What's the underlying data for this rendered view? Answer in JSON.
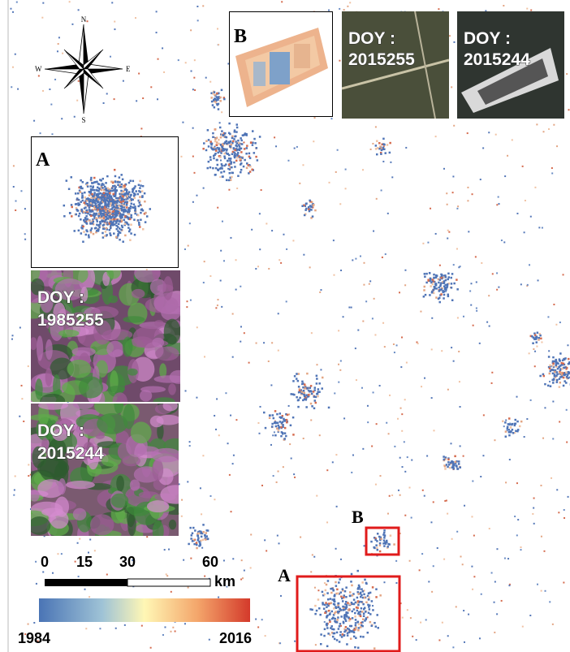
{
  "compass": {
    "n": "N",
    "s": "S",
    "e": "E",
    "w": "W"
  },
  "insets": {
    "b_detail": {
      "label": "B"
    },
    "b_2015255": {
      "prefix": "DOY :",
      "date": "2015255"
    },
    "b_2015244": {
      "prefix": "DOY :",
      "date": "2015244"
    },
    "a_detail": {
      "label": "A"
    },
    "a_1985255": {
      "prefix": "DOY :",
      "date": "1985255"
    },
    "a_2015244": {
      "prefix": "DOY :",
      "date": "2015244"
    }
  },
  "map_labels": {
    "a": "A",
    "b": "B"
  },
  "scale_bar": {
    "ticks": [
      "0",
      "15",
      "30",
      "60"
    ],
    "unit": "km"
  },
  "color_bar": {
    "min": "1984",
    "max": "2016"
  }
}
